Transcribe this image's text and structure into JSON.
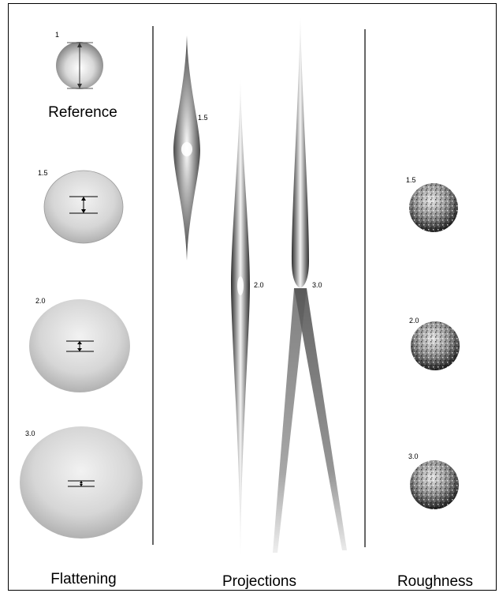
{
  "columns": {
    "flattening": "Flattening",
    "projections": "Projections",
    "roughness": "Roughness"
  },
  "reference": {
    "label": "Reference",
    "factor": "1"
  },
  "flattening_items": [
    {
      "factor": "1.5"
    },
    {
      "factor": "2.0"
    },
    {
      "factor": "3.0"
    }
  ],
  "projection_items": [
    {
      "factor": "1.5"
    },
    {
      "factor": "2.0"
    },
    {
      "factor": "3.0"
    }
  ],
  "roughness_items": [
    {
      "factor": "1.5"
    },
    {
      "factor": "2.0"
    },
    {
      "factor": "3.0"
    }
  ]
}
